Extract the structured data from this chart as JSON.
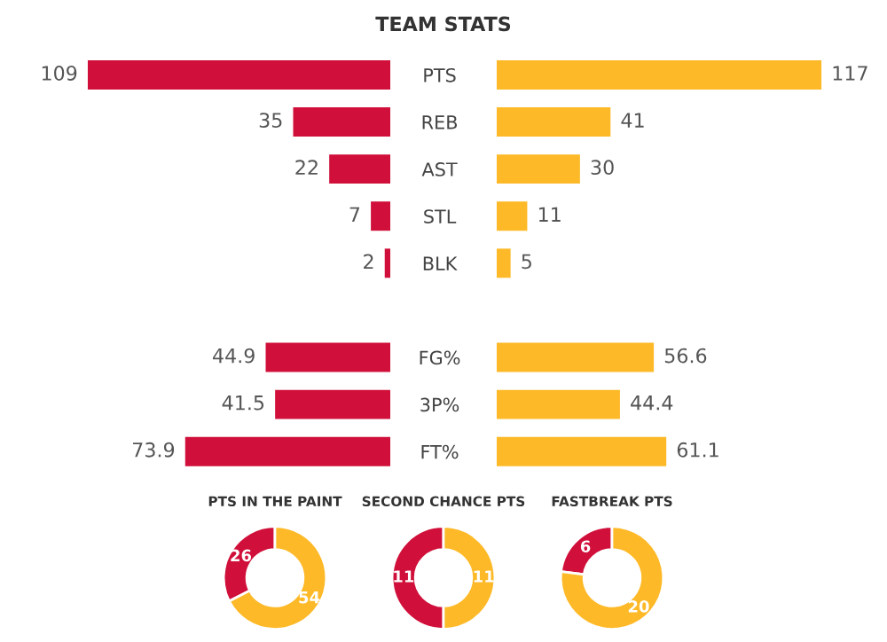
{
  "chart_data": [
    {
      "type": "bar",
      "orientation": "horizontal",
      "title": "TEAM STATS",
      "categories": [
        "PTS",
        "REB",
        "AST",
        "STL",
        "BLK",
        null,
        "FG%",
        "3P%",
        "FT%"
      ],
      "series": [
        {
          "color": "#d0103a",
          "values": [
            109,
            35,
            22,
            7,
            2,
            null,
            44.9,
            41.5,
            73.9
          ]
        }
      ],
      "tick_labels": "y",
      "data_labels": true
    },
    {
      "type": "bar",
      "orientation": "horizontal",
      "categories": [
        null,
        null,
        null,
        null,
        null,
        null,
        null,
        null,
        null
      ],
      "series": [
        {
          "color": "#fdb927",
          "values": [
            117,
            41,
            30,
            11,
            5,
            null,
            56.6,
            44.4,
            61.1
          ]
        }
      ],
      "tick_labels": false,
      "data_labels": true
    },
    {
      "type": "donut",
      "title": "PTS IN THE PAINT",
      "categories": [
        null,
        null
      ],
      "values": [
        26,
        54
      ],
      "colors": [
        "#d0103a",
        "#fdb927"
      ],
      "data_labels": true
    },
    {
      "type": "donut",
      "title": "SECOND CHANCE PTS",
      "categories": [
        null,
        null
      ],
      "values": [
        11,
        11
      ],
      "colors": [
        "#d0103a",
        "#fdb927"
      ],
      "data_labels": true
    },
    {
      "type": "donut",
      "title": "FASTBREAK PTS",
      "categories": [
        null,
        null
      ],
      "values": [
        6,
        20
      ],
      "colors": [
        "#d0103a",
        "#fdb927"
      ],
      "data_labels": true
    }
  ]
}
